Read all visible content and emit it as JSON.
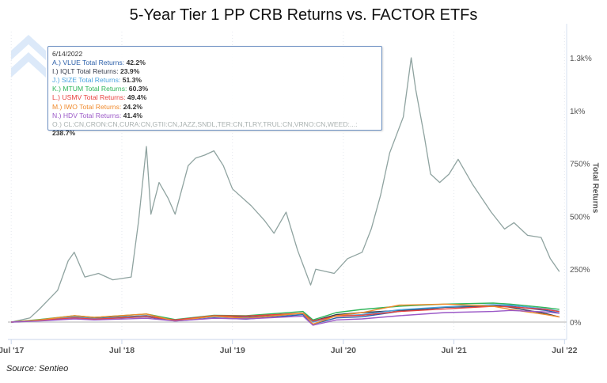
{
  "chart_data": {
    "type": "line",
    "title": "5-Year Tier 1 PP CRB Returns vs. FACTOR ETFs",
    "ylabel": "Total Returns",
    "xlabel": "",
    "x_ticks": [
      "Jul '17",
      "Jul '18",
      "Jul '19",
      "Jul '20",
      "Jul '21",
      "Jul '22"
    ],
    "y_ticks": [
      "0%",
      "250%",
      "500%",
      "750%",
      "1k%",
      "1.3k%"
    ],
    "y_tick_values": [
      0,
      250,
      500,
      750,
      1000,
      1250
    ],
    "ylim": [
      -30,
      1320
    ],
    "xlim": [
      "2017-06-20",
      "2022-07-08"
    ],
    "grid": "vertical dotted",
    "factor_dates": [
      "2017-07-01",
      "2017-10-01",
      "2018-01-26",
      "2018-04-01",
      "2018-09-20",
      "2018-12-24",
      "2019-05-01",
      "2019-08-15",
      "2020-02-19",
      "2020-03-23",
      "2020-06-08",
      "2020-09-01",
      "2021-01-01",
      "2021-06-01",
      "2021-11-08",
      "2022-01-03",
      "2022-05-01",
      "2022-06-14"
    ],
    "series": [
      {
        "name": "A.) VLUE Total Returns",
        "color": "#2a5ea8",
        "values": [
          0,
          8,
          22,
          14,
          25,
          5,
          20,
          14,
          35,
          -10,
          20,
          25,
          50,
          70,
          75,
          75,
          55,
          42.2
        ]
      },
      {
        "name": "I.) IQLT Total Returns",
        "color": "#333a4a",
        "values": [
          0,
          10,
          25,
          18,
          30,
          8,
          28,
          22,
          42,
          5,
          35,
          45,
          55,
          70,
          80,
          70,
          40,
          23.9
        ]
      },
      {
        "name": "J.) SIZE Total Returns",
        "color": "#4aa3df",
        "values": [
          0,
          10,
          24,
          16,
          28,
          8,
          26,
          20,
          40,
          0,
          28,
          35,
          58,
          72,
          82,
          80,
          62,
          51.3
        ]
      },
      {
        "name": "K.) MTUM Total Returns",
        "color": "#2fb55a",
        "values": [
          0,
          12,
          30,
          22,
          38,
          12,
          32,
          30,
          50,
          10,
          45,
          60,
          75,
          85,
          90,
          85,
          68,
          60.3
        ]
      },
      {
        "name": "L.) USMV Total Returns",
        "color": "#e8423f",
        "values": [
          0,
          8,
          20,
          14,
          26,
          10,
          30,
          28,
          42,
          5,
          28,
          32,
          50,
          62,
          75,
          72,
          60,
          49.4
        ]
      },
      {
        "name": "M.) IWO Total Returns",
        "color": "#f08a2c",
        "values": [
          0,
          10,
          30,
          22,
          38,
          5,
          28,
          18,
          42,
          -10,
          30,
          45,
          80,
          85,
          75,
          60,
          35,
          24.2
        ]
      },
      {
        "name": "N.) HDV Total Returns",
        "color": "#9b59c7",
        "values": [
          0,
          5,
          15,
          10,
          18,
          5,
          18,
          15,
          28,
          -15,
          10,
          15,
          30,
          45,
          50,
          55,
          48,
          41.4
        ]
      },
      {
        "name": "O.) CL:CN,CRON:CN,CURA:CN,GTII:CN,JAZZ,SNDL,TER:CN,TLRY,TRUL:CN,VRNO:CN,WEED:...",
        "color": "#8fa3a0",
        "dates": [
          "2017-07-01",
          "2017-09-01",
          "2017-10-01",
          "2017-12-01",
          "2018-01-05",
          "2018-01-25",
          "2018-03-01",
          "2018-04-15",
          "2018-06-01",
          "2018-08-01",
          "2018-08-25",
          "2018-09-20",
          "2018-10-05",
          "2018-11-01",
          "2018-12-01",
          "2018-12-24",
          "2019-02-05",
          "2019-03-01",
          "2019-04-01",
          "2019-05-01",
          "2019-06-01",
          "2019-07-01",
          "2019-09-01",
          "2019-10-15",
          "2019-11-15",
          "2019-12-25",
          "2020-02-01",
          "2020-03-15",
          "2020-04-01",
          "2020-06-01",
          "2020-07-15",
          "2020-09-01",
          "2020-10-01",
          "2020-11-01",
          "2020-12-01",
          "2021-01-15",
          "2021-02-10",
          "2021-02-25",
          "2021-03-25",
          "2021-04-15",
          "2021-05-15",
          "2021-06-15",
          "2021-07-15",
          "2021-09-01",
          "2021-11-01",
          "2021-12-15",
          "2022-01-15",
          "2022-03-01",
          "2022-04-15",
          "2022-05-15",
          "2022-06-14"
        ],
        "values": [
          0,
          20,
          60,
          150,
          290,
          330,
          213,
          230,
          200,
          213,
          475,
          830,
          510,
          660,
          585,
          510,
          740,
          775,
          790,
          810,
          740,
          630,
          550,
          480,
          420,
          520,
          340,
          175,
          250,
          230,
          300,
          330,
          440,
          600,
          800,
          970,
          1250,
          1100,
          880,
          700,
          660,
          700,
          770,
          650,
          520,
          440,
          470,
          410,
          400,
          300,
          238.7
        ]
      }
    ]
  },
  "tooltip": {
    "date": "6/14/2022",
    "rows": [
      {
        "label": "A.) VLUE Total Returns:",
        "value": "42.2%",
        "color": "#2a5ea8"
      },
      {
        "label": "I.) IQLT Total Returns:",
        "value": "23.9%",
        "color": "#333a4a"
      },
      {
        "label": "J.) SIZE Total Returns:",
        "value": "51.3%",
        "color": "#4aa3df"
      },
      {
        "label": "K.) MTUM Total Returns:",
        "value": "60.3%",
        "color": "#2fb55a"
      },
      {
        "label": "L.) USMV Total Returns:",
        "value": "49.4%",
        "color": "#e8423f"
      },
      {
        "label": "M.) IWO Total Returns:",
        "value": "24.2%",
        "color": "#f08a2c"
      },
      {
        "label": "N.) HDV Total Returns:",
        "value": "41.4%",
        "color": "#9b59c7"
      },
      {
        "label": "O.) CL:CN,CRON:CN,CURA:CN,GTII:CN,JAZZ,SNDL,TER:CN,TLRY,TRUL:CN,VRNO:CN,WEED:...:",
        "value": "238.7%",
        "color": "#a9b1b0"
      }
    ]
  },
  "source": "Source: Sentieo",
  "logo": {
    "icon": "sentieo-chevron-logo",
    "color": "#cfe2f7"
  }
}
